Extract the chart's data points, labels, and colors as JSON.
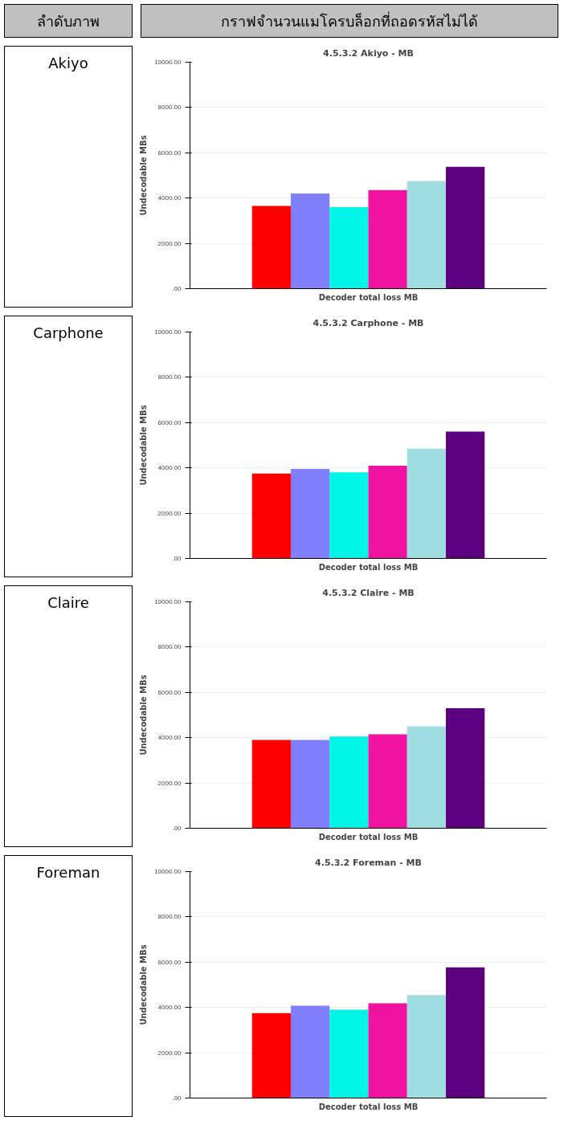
{
  "chart_data": [
    {
      "type": "bar",
      "title": "4.5.3.2 Akiyo - MB",
      "xlabel": "Decoder total loss MB",
      "ylabel": "Undecodable MBs",
      "annotations": [
        "ลำดับภาพ",
        "กราฟจำนวนแมโครบล็อกที่ถอดรหัสไม่ได้",
        "Akiyo"
      ],
      "categories": [
        null
      ],
      "ylim": [
        0,
        10000
      ],
      "yticks": [
        {
          "value": 0,
          "label": ".00"
        },
        {
          "value": 2000,
          "label": "2000.00"
        },
        {
          "value": 4000,
          "label": "4000.00"
        },
        {
          "value": 6000,
          "label": "6000.00"
        },
        {
          "value": 8000,
          "label": "8000.00"
        },
        {
          "value": 10000,
          "label": "10000.00"
        }
      ],
      "grid": "y",
      "series": [
        {
          "color": "#ff0000",
          "values": [
            3650
          ]
        },
        {
          "color": "#8080ff",
          "values": [
            4200
          ]
        },
        {
          "color": "#00f5e8",
          "values": [
            3600
          ]
        },
        {
          "color": "#f012a0",
          "values": [
            4350
          ]
        },
        {
          "color": "#a0dde0",
          "values": [
            4750
          ]
        },
        {
          "color": "#5c0080",
          "values": [
            5380
          ]
        }
      ]
    },
    {
      "type": "bar",
      "title": "4.5.3.2 Carphone - MB",
      "xlabel": "Decoder total loss MB",
      "ylabel": "Undecodable MBs",
      "annotations": [
        "Carphone"
      ],
      "categories": [
        null
      ],
      "ylim": [
        0,
        10000
      ],
      "yticks": [
        {
          "value": 0,
          "label": ".00"
        },
        {
          "value": 2000,
          "label": "2000.00"
        },
        {
          "value": 4000,
          "label": "4000.00"
        },
        {
          "value": 6000,
          "label": "6000.00"
        },
        {
          "value": 8000,
          "label": "8000.00"
        },
        {
          "value": 10000,
          "label": "10000.00"
        }
      ],
      "grid": "y",
      "series": [
        {
          "color": "#ff0000",
          "values": [
            3750
          ]
        },
        {
          "color": "#8080ff",
          "values": [
            3950
          ]
        },
        {
          "color": "#00f5e8",
          "values": [
            3800
          ]
        },
        {
          "color": "#f012a0",
          "values": [
            4100
          ]
        },
        {
          "color": "#a0dde0",
          "values": [
            4850
          ]
        },
        {
          "color": "#5c0080",
          "values": [
            5600
          ]
        }
      ]
    },
    {
      "type": "bar",
      "title": "4.5.3.2 Claire - MB",
      "xlabel": "Decoder total loss MB",
      "ylabel": "Undecodable MBs",
      "annotations": [
        "Claire"
      ],
      "categories": [
        null
      ],
      "ylim": [
        0,
        10000
      ],
      "yticks": [
        {
          "value": 0,
          "label": ".00"
        },
        {
          "value": 2000,
          "label": "2000.00"
        },
        {
          "value": 4000,
          "label": "4000.00"
        },
        {
          "value": 6000,
          "label": "6000.00"
        },
        {
          "value": 8000,
          "label": "8000.00"
        },
        {
          "value": 10000,
          "label": "10000.00"
        }
      ],
      "grid": "y",
      "series": [
        {
          "color": "#ff0000",
          "values": [
            3900
          ]
        },
        {
          "color": "#8080ff",
          "values": [
            3900
          ]
        },
        {
          "color": "#00f5e8",
          "values": [
            4050
          ]
        },
        {
          "color": "#f012a0",
          "values": [
            4150
          ]
        },
        {
          "color": "#a0dde0",
          "values": [
            4500
          ]
        },
        {
          "color": "#5c0080",
          "values": [
            5300
          ]
        }
      ]
    },
    {
      "type": "bar",
      "title": "4.5.3.2 Foreman - MB",
      "xlabel": "Decoder total loss MB",
      "ylabel": "Undecodable MBs",
      "annotations": [
        "Foreman"
      ],
      "categories": [
        null
      ],
      "ylim": [
        0,
        10000
      ],
      "yticks": [
        {
          "value": 0,
          "label": ".00"
        },
        {
          "value": 2000,
          "label": "2000.00"
        },
        {
          "value": 4000,
          "label": "4000.00"
        },
        {
          "value": 6000,
          "label": "6000.00"
        },
        {
          "value": 8000,
          "label": "8000.00"
        },
        {
          "value": 10000,
          "label": "10000.00"
        }
      ],
      "grid": "y",
      "series": [
        {
          "color": "#ff0000",
          "values": [
            3750
          ]
        },
        {
          "color": "#8080ff",
          "values": [
            4080
          ]
        },
        {
          "color": "#00f5e8",
          "values": [
            3900
          ]
        },
        {
          "color": "#f012a0",
          "values": [
            4180
          ]
        },
        {
          "color": "#a0dde0",
          "values": [
            4550
          ]
        },
        {
          "color": "#5c0080",
          "values": [
            5770
          ]
        }
      ]
    }
  ]
}
